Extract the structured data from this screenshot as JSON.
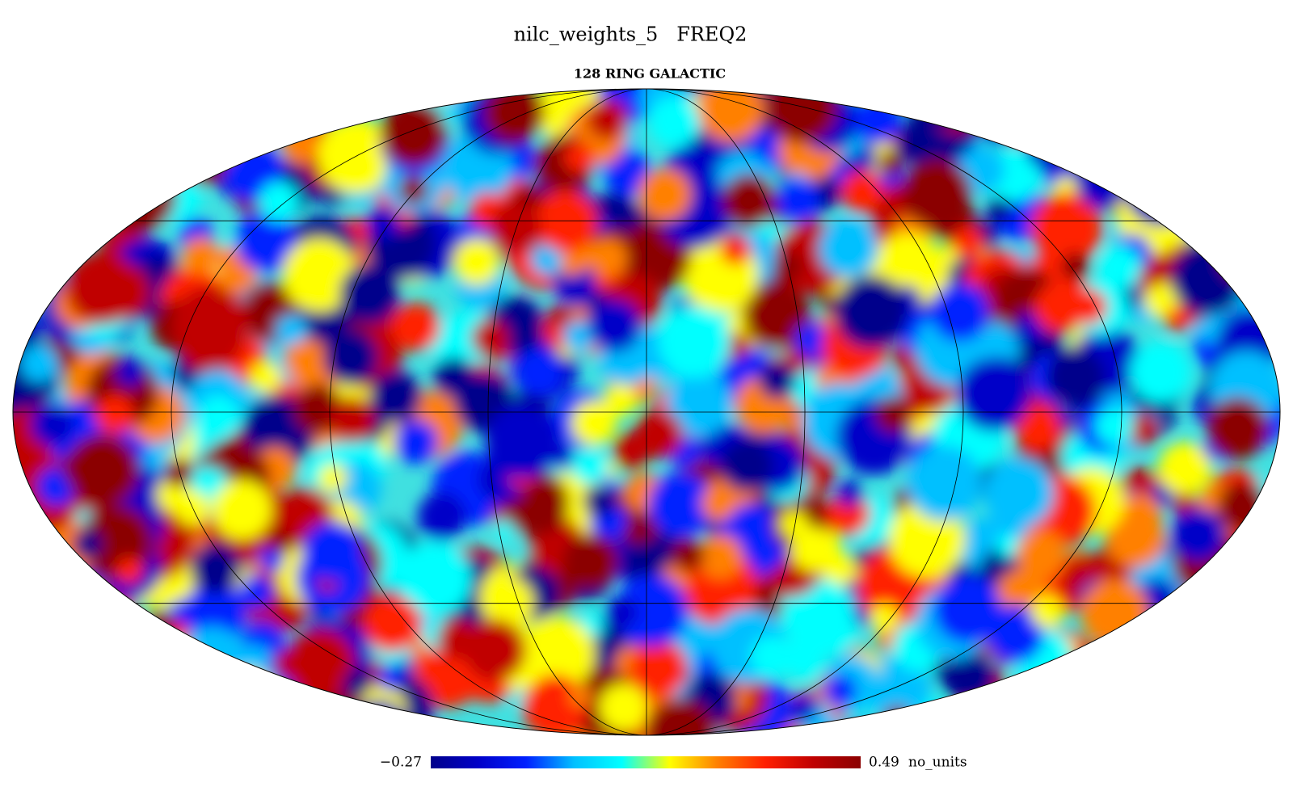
{
  "header": {
    "title": "nilc_weights_5   FREQ2",
    "subtitle": "128 RING GALACTIC"
  },
  "colorbar": {
    "min": {
      "value": -0.27,
      "label": "−0.27"
    },
    "max": 0.49,
    "unit": "no_units",
    "colormap": [
      "#00008b",
      "#0000c8",
      "#0020ff",
      "#00c0ff",
      "#00ffff",
      "#ffff00",
      "#ff8000",
      "#ff2000",
      "#c00000",
      "#8b0000"
    ]
  }
}
